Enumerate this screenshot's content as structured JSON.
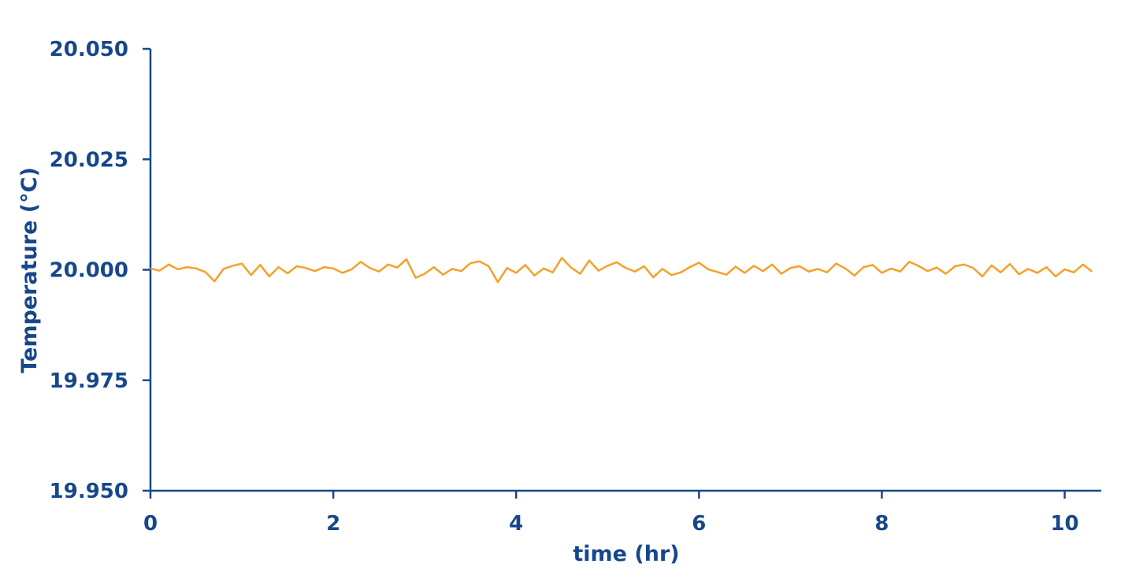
{
  "chart_data": {
    "type": "line",
    "xlabel": "time (hr)",
    "ylabel": "Temperature (°C)",
    "xlim": [
      0,
      10.4
    ],
    "ylim": [
      19.95,
      20.05
    ],
    "xticks": [
      0,
      2,
      4,
      6,
      8,
      10
    ],
    "yticks": [
      {
        "value": 19.95,
        "label": "19.950"
      },
      {
        "value": 19.975,
        "label": "19.975"
      },
      {
        "value": 20.0,
        "label": "20.000"
      },
      {
        "value": 20.025,
        "label": "20.025"
      },
      {
        "value": 20.05,
        "label": "20.050"
      }
    ],
    "axis_color": "#17478b",
    "x": [
      0,
      0.1,
      0.2,
      0.3,
      0.4,
      0.5,
      0.6,
      0.7,
      0.8,
      0.9,
      1.0,
      1.1,
      1.2,
      1.3,
      1.4,
      1.5,
      1.6,
      1.7,
      1.8,
      1.9,
      2.0,
      2.1,
      2.2,
      2.3,
      2.4,
      2.5,
      2.6,
      2.7,
      2.8,
      2.9,
      3.0,
      3.1,
      3.2,
      3.3,
      3.4,
      3.5,
      3.6,
      3.7,
      3.8,
      3.9,
      4.0,
      4.1,
      4.2,
      4.3,
      4.4,
      4.5,
      4.6,
      4.7,
      4.8,
      4.9,
      5.0,
      5.1,
      5.2,
      5.3,
      5.4,
      5.5,
      5.6,
      5.7,
      5.8,
      5.9,
      6.0,
      6.1,
      6.2,
      6.3,
      6.4,
      6.5,
      6.6,
      6.7,
      6.8,
      6.9,
      7.0,
      7.1,
      7.2,
      7.3,
      7.4,
      7.5,
      7.6,
      7.7,
      7.8,
      7.9,
      8.0,
      8.1,
      8.2,
      8.3,
      8.4,
      8.5,
      8.6,
      8.7,
      8.8,
      8.9,
      9.0,
      9.1,
      9.2,
      9.3,
      9.4,
      9.5,
      9.6,
      9.7,
      9.8,
      9.9,
      10.0,
      10.1,
      10.2,
      10.3
    ],
    "series": [
      {
        "color": "#f5a02a",
        "values": [
          20.0003,
          19.9998,
          20.0012,
          20.0001,
          20.0006,
          20.0003,
          19.9995,
          19.9974,
          20.0002,
          20.0009,
          20.0014,
          19.9988,
          20.0011,
          19.9985,
          20.0006,
          19.9992,
          20.0008,
          20.0004,
          19.9997,
          20.0006,
          20.0003,
          19.9993,
          20.0001,
          20.0018,
          20.0004,
          19.9996,
          20.0012,
          20.0005,
          20.0024,
          19.9982,
          19.9991,
          20.0006,
          19.9989,
          20.0002,
          19.9997,
          20.0015,
          20.0019,
          20.0008,
          19.9972,
          20.0004,
          19.9993,
          20.0011,
          19.9987,
          20.0003,
          19.9994,
          20.0027,
          20.0005,
          19.9991,
          20.0021,
          19.9998,
          20.0009,
          20.0017,
          20.0004,
          19.9996,
          20.0008,
          19.9983,
          20.0002,
          19.9988,
          19.9994,
          20.0006,
          20.0016,
          20.0001,
          19.9995,
          19.9989,
          20.0007,
          19.9993,
          20.0009,
          19.9997,
          20.0012,
          19.9991,
          20.0004,
          20.0008,
          19.9996,
          20.0002,
          19.9994,
          20.0014,
          20.0003,
          19.9987,
          20.0006,
          20.0011,
          19.9993,
          20.0003,
          19.9996,
          20.0018,
          20.0009,
          19.9997,
          20.0005,
          19.9991,
          20.0008,
          20.0012,
          20.0004,
          19.9985,
          20.001,
          19.9994,
          20.0013,
          19.999,
          20.0002,
          19.9993,
          20.0006,
          19.9985,
          20.0001,
          19.9994,
          20.0012,
          19.9996
        ]
      }
    ]
  }
}
